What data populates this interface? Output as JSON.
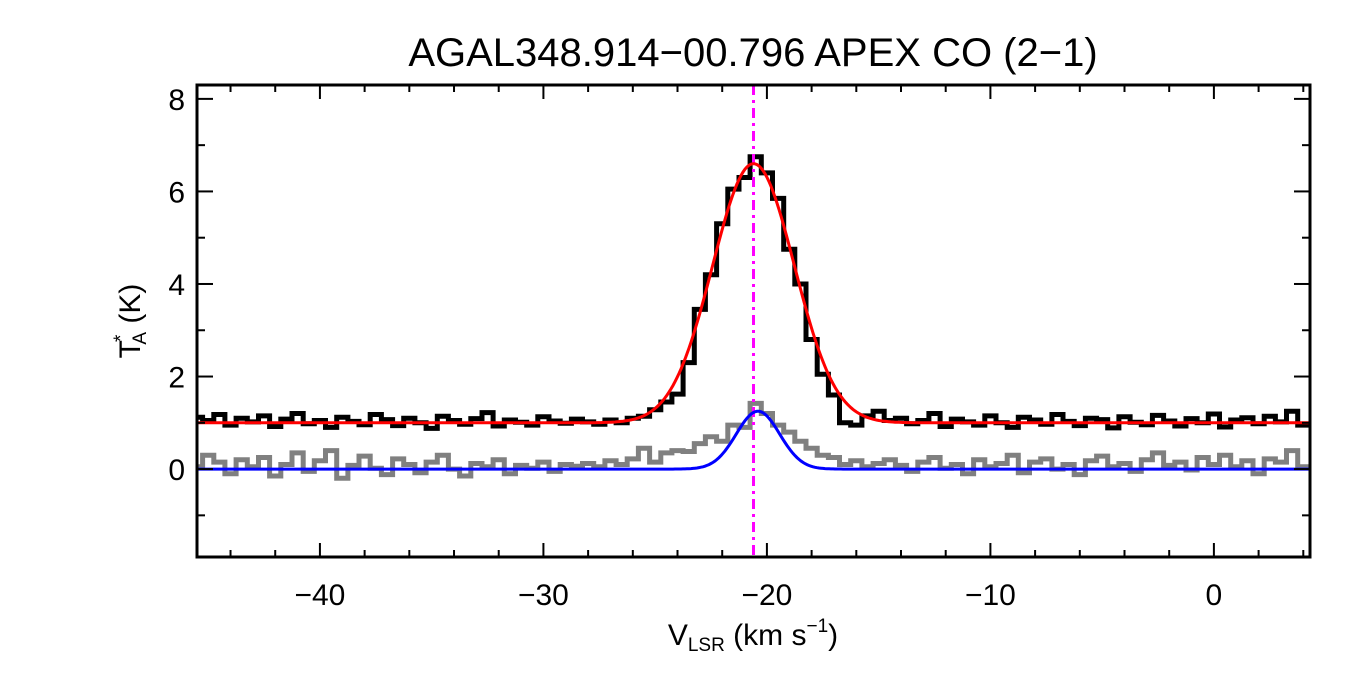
{
  "chart_data": {
    "type": "line",
    "title": "AGAL348.914−00.796  APEX CO (2−1)",
    "xlabel": {
      "main": "V",
      "sub": "LSR",
      "rest": " (km s",
      "sup": "−1",
      "end": ")"
    },
    "ylabel": {
      "main": "T",
      "sup": "*",
      "sub": "A",
      "rest": " (K)"
    },
    "xlim": [
      -45.5,
      4.3
    ],
    "ylim": [
      -1.9,
      8.3
    ],
    "x_ticks": [
      -40,
      -30,
      -20,
      -10,
      0
    ],
    "x_tick_labels": [
      "−40",
      "−30",
      "−20",
      "−10",
      "0"
    ],
    "y_ticks": [
      0,
      2,
      4,
      6,
      8
    ],
    "y_tick_labels": [
      "0",
      "2",
      "4",
      "6",
      "8"
    ],
    "x_start": -45.5,
    "channel_width": 0.5,
    "series": [
      {
        "name": "spectrum",
        "style": "histogram",
        "color": "#000000",
        "values": [
          1.12,
          1.05,
          1.18,
          0.95,
          1.1,
          1.02,
          1.15,
          0.92,
          1.08,
          1.2,
          0.98,
          1.05,
          0.9,
          1.12,
          1.03,
          0.96,
          1.18,
          1.07,
          0.94,
          1.1,
          1.0,
          0.88,
          1.14,
          1.05,
          0.97,
          1.09,
          1.22,
          0.93,
          1.06,
          1.01,
          0.95,
          1.13,
          1.04,
          0.99,
          1.08,
          1.02,
          0.97,
          1.06,
          1.0,
          1.1,
          1.14,
          1.28,
          1.45,
          1.62,
          2.3,
          3.45,
          4.2,
          5.3,
          6.05,
          6.3,
          6.75,
          6.4,
          5.85,
          4.75,
          4.0,
          2.8,
          2.05,
          1.6,
          1.0,
          0.95,
          1.15,
          1.25,
          1.05,
          1.1,
          0.98,
          1.05,
          1.2,
          0.92,
          1.08,
          1.02,
          0.95,
          1.15,
          1.0,
          0.9,
          1.12,
          1.06,
          0.97,
          1.18,
          1.03,
          0.94,
          1.1,
          1.07,
          0.89,
          1.13,
          1.01,
          0.96,
          1.16,
          1.04,
          0.93,
          1.09,
          1.0,
          1.19,
          0.91,
          1.06,
          1.11,
          0.98,
          1.14,
          1.02,
          1.25,
          0.95
        ]
      },
      {
        "name": "second-spectrum",
        "style": "histogram",
        "color": "#808080",
        "values": [
          0.05,
          0.3,
          0.15,
          -0.1,
          0.2,
          0.05,
          0.25,
          -0.15,
          0.1,
          0.35,
          -0.05,
          0.18,
          0.4,
          -0.2,
          0.08,
          0.28,
          0.02,
          -0.12,
          0.22,
          0.1,
          -0.08,
          0.15,
          0.3,
          0.0,
          -0.15,
          0.12,
          0.05,
          0.2,
          -0.1,
          0.08,
          0.02,
          0.15,
          -0.05,
          0.1,
          0.06,
          0.12,
          0.05,
          0.18,
          0.1,
          0.22,
          0.45,
          0.15,
          0.35,
          0.4,
          0.38,
          0.55,
          0.7,
          0.6,
          0.95,
          0.9,
          1.42,
          1.2,
          0.95,
          0.8,
          0.6,
          0.45,
          0.3,
          0.25,
          0.1,
          0.18,
          0.05,
          0.12,
          0.2,
          0.08,
          -0.05,
          0.15,
          0.25,
          0.02,
          0.1,
          -0.1,
          0.2,
          0.05,
          0.12,
          0.3,
          -0.08,
          0.15,
          0.22,
          0.0,
          0.1,
          -0.12,
          0.18,
          0.28,
          0.05,
          0.12,
          -0.05,
          0.2,
          0.35,
          0.08,
          0.15,
          -0.02,
          0.25,
          0.1,
          0.3,
          0.05,
          0.18,
          -0.1,
          0.22,
          0.15,
          0.4,
          0.05
        ]
      }
    ],
    "fits": [
      {
        "name": "gaussian-fit-red",
        "color": "#ff0000",
        "baseline": 1.0,
        "amplitude": 5.6,
        "center": -20.6,
        "sigma": 1.83
      },
      {
        "name": "gaussian-fit-blue",
        "color": "#0000ff",
        "baseline": 0.0,
        "amplitude": 1.25,
        "center": -20.4,
        "sigma": 0.97
      }
    ],
    "vline": {
      "name": "systemic-velocity",
      "x": -20.6,
      "color": "#ff00ff",
      "style": "dash-dot"
    },
    "grid": false
  }
}
